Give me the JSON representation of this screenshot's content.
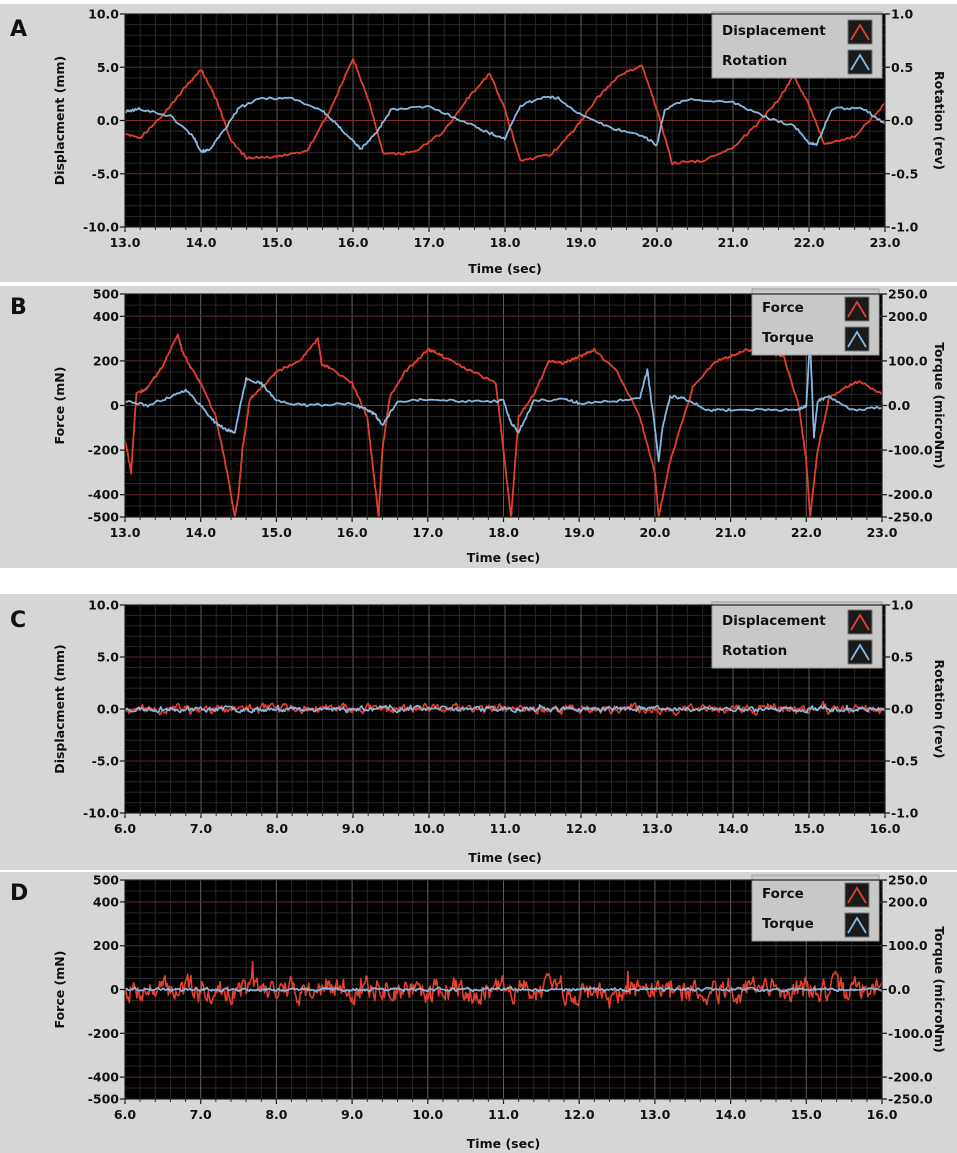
{
  "colors": {
    "plot_bg": "#000000",
    "panel_bg": "#d6d6d6",
    "grid_major": "#5a5a5a",
    "grid_minor": "#262626",
    "red": "#e2402c",
    "blue": "#86b8e0",
    "legend_bg": "#c8c8c8"
  },
  "chart_data": [
    {
      "panel": "A",
      "type": "line",
      "xlabel": "Time (sec)",
      "ylabel": "Displacment (mm)",
      "y2label": "Rotation (rev)",
      "xlim": [
        13,
        23
      ],
      "ylim": [
        -10,
        10
      ],
      "y2lim": [
        -1,
        1
      ],
      "xticks": [
        "13.0",
        "14.0",
        "15.0",
        "16.0",
        "17.0",
        "18.0",
        "19.0",
        "20.0",
        "21.0",
        "22.0",
        "23.0"
      ],
      "yticks": [
        "10.0",
        "5.0",
        "0.0",
        "-5.0",
        "-10.0"
      ],
      "y2ticks": [
        "1.0",
        "0.5",
        "0.0",
        "-0.5",
        "-1.0"
      ],
      "legend_position": "top-right",
      "series": [
        {
          "name": "Displacement",
          "color": "red",
          "axis": "left",
          "x": [
            13.0,
            13.2,
            13.5,
            13.8,
            14.0,
            14.2,
            14.4,
            14.6,
            15.0,
            15.4,
            15.7,
            16.0,
            16.2,
            16.4,
            16.8,
            17.2,
            17.5,
            17.8,
            18.0,
            18.2,
            18.6,
            18.9,
            19.2,
            19.5,
            19.8,
            20.0,
            20.2,
            20.6,
            21.0,
            21.3,
            21.6,
            21.8,
            22.0,
            22.2,
            22.6,
            23.0
          ],
          "y": [
            -1.2,
            -1.6,
            0.5,
            3.2,
            4.8,
            2.0,
            -2.0,
            -3.5,
            -3.4,
            -2.8,
            1.0,
            5.8,
            2.0,
            -3.2,
            -3.0,
            -1.0,
            2.0,
            4.4,
            1.0,
            -3.8,
            -3.2,
            -1.0,
            2.0,
            4.2,
            5.2,
            1.0,
            -4.0,
            -3.8,
            -2.5,
            -0.5,
            2.0,
            4.2,
            1.5,
            -2.2,
            -1.5,
            1.6
          ]
        },
        {
          "name": "Rotation",
          "color": "blue",
          "axis": "right",
          "x": [
            13.0,
            13.2,
            13.6,
            13.9,
            14.0,
            14.1,
            14.3,
            14.5,
            14.8,
            15.2,
            15.6,
            15.8,
            16.0,
            16.1,
            16.3,
            16.5,
            17.0,
            17.5,
            17.8,
            18.0,
            18.2,
            18.5,
            18.7,
            19.0,
            19.4,
            19.8,
            20.0,
            20.1,
            20.4,
            21.0,
            21.4,
            21.8,
            22.0,
            22.1,
            22.3,
            22.7,
            23.0
          ],
          "y": [
            0.08,
            0.11,
            0.04,
            -0.15,
            -0.29,
            -0.28,
            -0.1,
            0.12,
            0.21,
            0.21,
            0.09,
            -0.05,
            -0.19,
            -0.27,
            -0.12,
            0.1,
            0.13,
            -0.02,
            -0.12,
            -0.17,
            0.14,
            0.22,
            0.21,
            0.05,
            -0.07,
            -0.14,
            -0.23,
            0.1,
            0.2,
            0.17,
            0.04,
            -0.05,
            -0.21,
            -0.23,
            0.11,
            0.12,
            -0.03
          ]
        }
      ]
    },
    {
      "panel": "B",
      "type": "line",
      "xlabel": "Time (sec)",
      "ylabel": "Force (mN)",
      "y2label": "Torque (microNm)",
      "xlim": [
        13,
        23
      ],
      "ylim": [
        -500,
        500
      ],
      "y2lim": [
        -250,
        250
      ],
      "xticks": [
        "13.0",
        "14.0",
        "15.0",
        "16.0",
        "17.0",
        "18.0",
        "19.0",
        "20.0",
        "21.0",
        "22.0",
        "23.0"
      ],
      "yticks": [
        "500",
        "400",
        "200",
        "0",
        "-200",
        "-400",
        "-500"
      ],
      "yticks_values": [
        500,
        400,
        200,
        0,
        -200,
        -400,
        -500
      ],
      "y2ticks": [
        "250.0",
        "200.0",
        "100.0",
        "0.0",
        "-100.0",
        "-200.0",
        "-250.0"
      ],
      "y2ticks_values": [
        250,
        200,
        100,
        0,
        -100,
        -200,
        -250
      ],
      "legend_position": "top-right",
      "series": [
        {
          "name": "Force",
          "color": "red",
          "axis": "left",
          "x": [
            13.0,
            13.08,
            13.15,
            13.3,
            13.5,
            13.7,
            13.75,
            13.85,
            14.0,
            14.2,
            14.35,
            14.45,
            14.5,
            14.55,
            14.65,
            14.8,
            15.0,
            15.3,
            15.55,
            15.6,
            15.7,
            16.0,
            16.2,
            16.35,
            16.4,
            16.5,
            16.7,
            17.0,
            17.1,
            17.3,
            17.6,
            17.9,
            18.1,
            18.2,
            18.4,
            18.6,
            18.8,
            19.0,
            19.2,
            19.5,
            19.8,
            20.0,
            20.05,
            20.2,
            20.5,
            20.8,
            21.0,
            21.2,
            21.5,
            21.7,
            21.9,
            22.0,
            22.05,
            22.15,
            22.3,
            22.5,
            22.7,
            23.0
          ],
          "y": [
            -150,
            -300,
            50,
            80,
            180,
            320,
            250,
            180,
            100,
            -50,
            -300,
            -500,
            -400,
            -200,
            30,
            80,
            150,
            200,
            300,
            180,
            170,
            100,
            -50,
            -500,
            -200,
            40,
            150,
            250,
            240,
            200,
            150,
            100,
            -500,
            -50,
            50,
            200,
            190,
            220,
            250,
            150,
            -50,
            -300,
            -500,
            -250,
            80,
            200,
            220,
            250,
            240,
            220,
            0,
            -250,
            -500,
            -200,
            30,
            80,
            110,
            50
          ]
        },
        {
          "name": "Torque",
          "color": "blue",
          "axis": "right",
          "x": [
            13.0,
            13.3,
            13.6,
            13.8,
            14.0,
            14.2,
            14.35,
            14.45,
            14.6,
            14.8,
            15.0,
            15.4,
            16.0,
            16.2,
            16.3,
            16.4,
            16.6,
            17.0,
            17.5,
            18.0,
            18.1,
            18.2,
            18.4,
            18.8,
            19.0,
            19.5,
            19.8,
            19.9,
            20.0,
            20.05,
            20.1,
            20.2,
            20.4,
            20.7,
            21.0,
            21.5,
            21.9,
            22.0,
            22.05,
            22.1,
            22.15,
            22.3,
            22.6,
            23.0
          ],
          "y": [
            10,
            0,
            20,
            35,
            0,
            -40,
            -55,
            -60,
            60,
            50,
            10,
            0,
            5,
            -10,
            -20,
            -45,
            10,
            15,
            10,
            10,
            -40,
            -60,
            10,
            15,
            5,
            10,
            15,
            80,
            -50,
            -125,
            -50,
            20,
            15,
            -10,
            -10,
            -10,
            -10,
            0,
            150,
            -70,
            10,
            20,
            -10,
            -5
          ]
        }
      ]
    },
    {
      "panel": "C",
      "type": "line",
      "xlabel": "Time (sec)",
      "ylabel": "Displacment (mm)",
      "y2label": "Rotation (rev)",
      "xlim": [
        6,
        16
      ],
      "ylim": [
        -10,
        10
      ],
      "y2lim": [
        -1,
        1
      ],
      "xticks": [
        "6.0",
        "7.0",
        "8.0",
        "9.0",
        "10.0",
        "11.0",
        "12.0",
        "13.0",
        "14.0",
        "15.0",
        "16.0"
      ],
      "yticks": [
        "10.0",
        "5.0",
        "0.0",
        "-5.0",
        "-10.0"
      ],
      "y2ticks": [
        "1.0",
        "0.5",
        "0.0",
        "-0.5",
        "-1.0"
      ],
      "legend_position": "top-right",
      "series": [
        {
          "name": "Displacement",
          "color": "red",
          "axis": "left",
          "noise": 0.35,
          "seed": 11
        },
        {
          "name": "Rotation",
          "color": "blue",
          "axis": "right",
          "noise": 0.02,
          "seed": 23
        }
      ]
    },
    {
      "panel": "D",
      "type": "line",
      "xlabel": "Time (sec)",
      "ylabel": "Force (mN)",
      "y2label": "Torque (microNm)",
      "xlim": [
        6,
        16
      ],
      "ylim": [
        -500,
        500
      ],
      "y2lim": [
        -250,
        250
      ],
      "xticks": [
        "6.0",
        "7.0",
        "8.0",
        "9.0",
        "10.0",
        "11.0",
        "12.0",
        "13.0",
        "14.0",
        "15.0",
        "16.0"
      ],
      "yticks": [
        "500",
        "400",
        "200",
        "0",
        "-200",
        "-400",
        "-500"
      ],
      "yticks_values": [
        500,
        400,
        200,
        0,
        -200,
        -400,
        -500
      ],
      "y2ticks": [
        "250.0",
        "200.0",
        "100.0",
        "0.0",
        "-100.0",
        "-200.0",
        "-250.0"
      ],
      "y2ticks_values": [
        250,
        200,
        100,
        0,
        -100,
        -200,
        -250
      ],
      "legend_position": "top-right",
      "series": [
        {
          "name": "Force",
          "color": "red",
          "axis": "left",
          "noise": 45,
          "seed": 7
        },
        {
          "name": "Torque",
          "color": "blue",
          "axis": "right",
          "noise": 3,
          "seed": 41
        }
      ]
    }
  ]
}
